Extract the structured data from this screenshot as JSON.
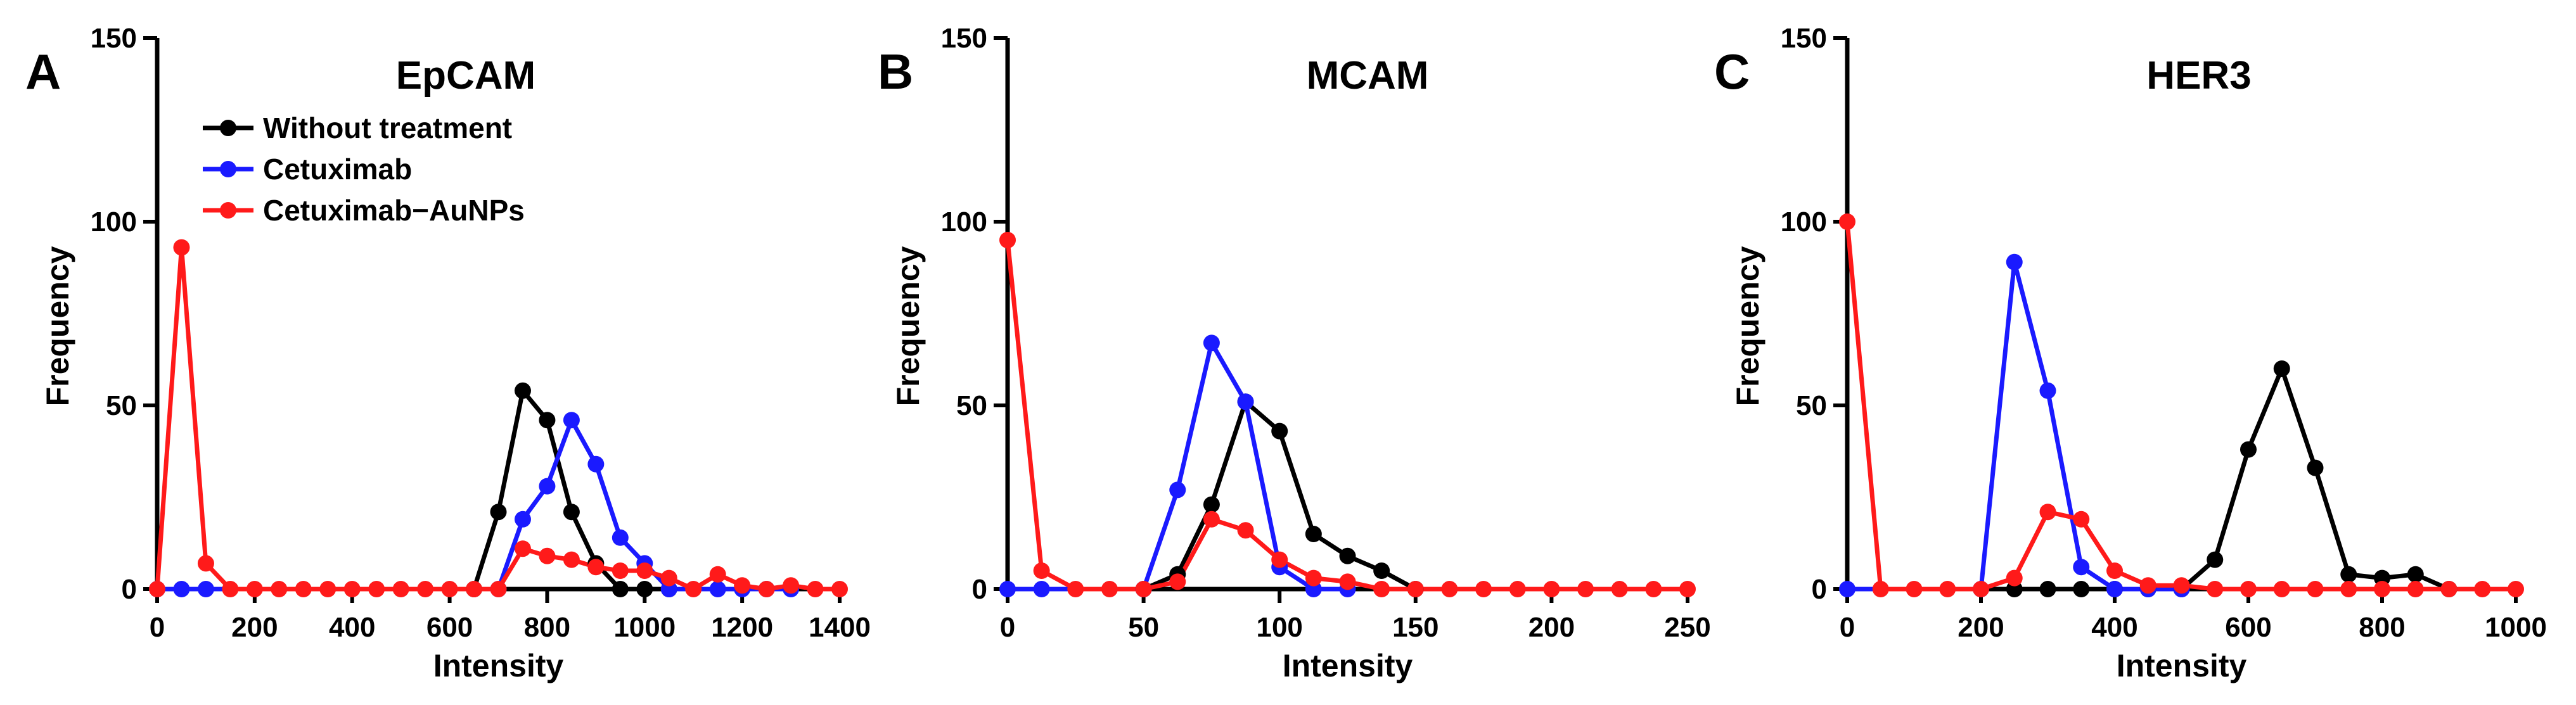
{
  "legend": {
    "entries": [
      {
        "name": "Without treatment",
        "color": "#000000"
      },
      {
        "name": "Cetuximab",
        "color": "#1a1aff"
      },
      {
        "name": "Cetuximab−AuNPs",
        "color": "#ff1a1a"
      }
    ]
  },
  "chart_data": [
    {
      "type": "line",
      "panel": "A",
      "title": "EpCAM",
      "xlabel": "Intensity",
      "ylabel": "Frequency",
      "xlim": [
        0,
        1400
      ],
      "ylim": [
        0,
        150
      ],
      "xticks": [
        "0",
        "200",
        "400",
        "600",
        "800",
        "1000",
        "1200",
        "1400"
      ],
      "yticks": [
        "0",
        "50",
        "100",
        "150"
      ],
      "x": [
        0,
        50,
        100,
        150,
        200,
        250,
        300,
        350,
        400,
        450,
        500,
        550,
        600,
        650,
        700,
        750,
        800,
        850,
        900,
        950,
        1000,
        1050,
        1100,
        1150,
        1200,
        1250,
        1300,
        1350,
        1400
      ],
      "series": [
        {
          "name": "Without treatment",
          "color": "#000000",
          "x": [
            650,
            700,
            750,
            800,
            850,
            900,
            950,
            1000,
            1050
          ],
          "values": [
            0,
            21,
            54,
            46,
            21,
            7,
            0,
            0,
            0
          ]
        },
        {
          "name": "Cetuximab",
          "color": "#1a1aff",
          "x": [
            0,
            50,
            100,
            700,
            750,
            800,
            850,
            900,
            950,
            1000,
            1050,
            1150,
            1200,
            1250,
            1300
          ],
          "values": [
            0,
            0,
            0,
            0,
            19,
            28,
            46,
            34,
            14,
            7,
            0,
            0,
            0,
            0,
            0
          ]
        },
        {
          "name": "Cetuximab−AuNPs",
          "color": "#ff1a1a",
          "x": [
            0,
            50,
            100,
            150,
            200,
            250,
            300,
            350,
            400,
            450,
            500,
            550,
            600,
            650,
            700,
            750,
            800,
            850,
            900,
            950,
            1000,
            1050,
            1100,
            1150,
            1200,
            1250,
            1300,
            1350,
            1400
          ],
          "values": [
            0,
            93,
            7,
            0,
            0,
            0,
            0,
            0,
            0,
            0,
            0,
            0,
            0,
            0,
            0,
            11,
            9,
            8,
            6,
            5,
            5,
            3,
            0,
            4,
            1,
            0,
            1,
            0,
            0
          ]
        }
      ]
    },
    {
      "type": "line",
      "panel": "B",
      "title": "MCAM",
      "xlabel": "Intensity",
      "ylabel": "Frequency",
      "xlim": [
        0,
        250
      ],
      "ylim": [
        0,
        150
      ],
      "xticks": [
        "0",
        "50",
        "100",
        "150",
        "200",
        "250"
      ],
      "yticks": [
        "0",
        "50",
        "100",
        "150"
      ],
      "series": [
        {
          "name": "Without treatment",
          "color": "#000000",
          "x": [
            50,
            62.5,
            75,
            87.5,
            100,
            112.5,
            125,
            137.5,
            150
          ],
          "values": [
            0,
            4,
            23,
            51,
            43,
            15,
            9,
            5,
            0
          ]
        },
        {
          "name": "Cetuximab",
          "color": "#1a1aff",
          "x": [
            0,
            12.5,
            50,
            62.5,
            75,
            87.5,
            100,
            112.5,
            125
          ],
          "values": [
            0,
            0,
            0,
            27,
            67,
            51,
            6,
            0,
            0
          ]
        },
        {
          "name": "Cetuximab−AuNPs",
          "color": "#ff1a1a",
          "x": [
            0,
            12.5,
            25,
            37.5,
            50,
            62.5,
            75,
            87.5,
            100,
            112.5,
            125,
            137.5,
            150,
            162.5,
            175,
            187.5,
            200,
            212.5,
            225,
            237.5,
            250
          ],
          "values": [
            95,
            5,
            0,
            0,
            0,
            2,
            19,
            16,
            8,
            3,
            2,
            0,
            0,
            0,
            0,
            0,
            0,
            0,
            0,
            0,
            0
          ]
        }
      ]
    },
    {
      "type": "line",
      "panel": "C",
      "title": "HER3",
      "xlabel": "Intensity",
      "ylabel": "Frequency",
      "xlim": [
        0,
        1000
      ],
      "ylim": [
        0,
        150
      ],
      "xticks": [
        "0",
        "200",
        "400",
        "600",
        "800",
        "1000"
      ],
      "yticks": [
        "0",
        "50",
        "100",
        "150"
      ],
      "series": [
        {
          "name": "Without treatment",
          "color": "#000000",
          "x": [
            250,
            300,
            350,
            400,
            450,
            500,
            550,
            600,
            650,
            700,
            750,
            800,
            850,
            900
          ],
          "values": [
            0,
            0,
            0,
            0,
            0,
            0,
            8,
            38,
            60,
            33,
            4,
            3,
            4,
            0
          ]
        },
        {
          "name": "Cetuximab",
          "color": "#1a1aff",
          "x": [
            0,
            200,
            250,
            300,
            350,
            400,
            450,
            500
          ],
          "values": [
            0,
            0,
            89,
            54,
            6,
            0,
            0,
            0
          ]
        },
        {
          "name": "Cetuximab−AuNPs",
          "color": "#ff1a1a",
          "x": [
            0,
            50,
            100,
            150,
            200,
            250,
            300,
            350,
            400,
            450,
            500,
            550,
            600,
            650,
            700,
            750,
            800,
            850,
            900,
            950,
            1000
          ],
          "values": [
            100,
            0,
            0,
            0,
            0,
            3,
            21,
            19,
            5,
            1,
            1,
            0,
            0,
            0,
            0,
            0,
            0,
            0,
            0,
            0,
            0
          ]
        }
      ]
    }
  ]
}
